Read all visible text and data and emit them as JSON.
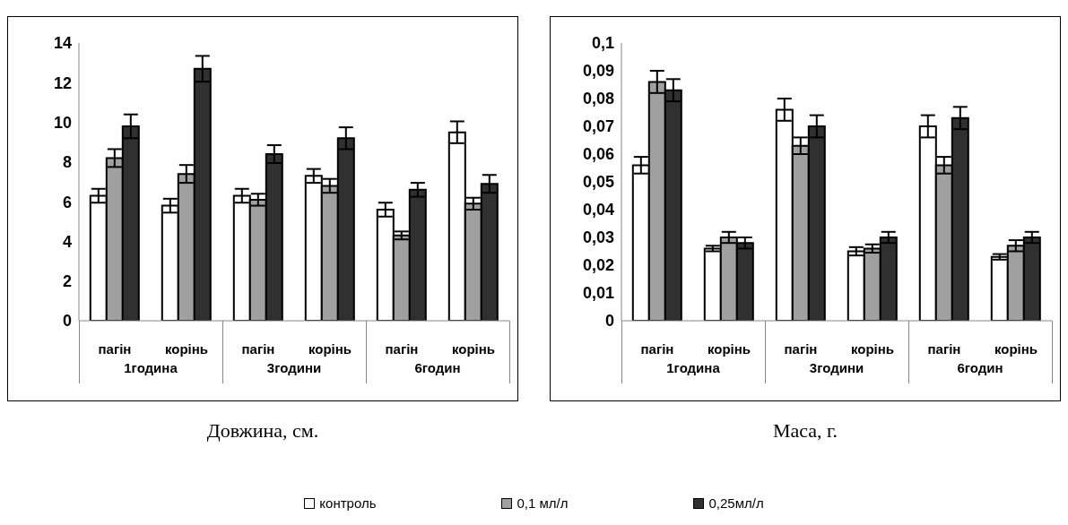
{
  "chart_data": [
    {
      "type": "bar",
      "xlabel": "Довжина, см.",
      "categories": [
        "пагін",
        "корінь",
        "пагін",
        "корінь",
        "пагін",
        "корінь"
      ],
      "annotations": [
        "1година",
        "3години",
        "6годин"
      ],
      "ylim": [
        0,
        14
      ],
      "yticks": [
        0,
        2,
        4,
        6,
        8,
        10,
        12,
        14
      ],
      "legend": "bottom",
      "series": [
        {
          "name": "контроль",
          "color": "#ffffff",
          "values": [
            6.3,
            5.8,
            6.3,
            7.3,
            5.6,
            9.5
          ],
          "errors": [
            0.35,
            0.35,
            0.35,
            0.35,
            0.35,
            0.55
          ]
        },
        {
          "name": "0,1 мл/л",
          "color": "#a0a0a0",
          "values": [
            8.2,
            7.4,
            6.1,
            6.8,
            4.3,
            5.9
          ],
          "errors": [
            0.45,
            0.45,
            0.3,
            0.35,
            0.2,
            0.3
          ]
        },
        {
          "name": "0,25мл/л",
          "color": "#303030",
          "values": [
            9.8,
            12.7,
            8.4,
            9.2,
            6.6,
            6.9
          ],
          "errors": [
            0.6,
            0.65,
            0.45,
            0.55,
            0.35,
            0.45
          ]
        }
      ]
    },
    {
      "type": "bar",
      "xlabel": "Маса, г.",
      "categories": [
        "пагін",
        "корінь",
        "пагін",
        "корінь",
        "пагін",
        "корінь"
      ],
      "annotations": [
        "1година",
        "3години",
        "6годин"
      ],
      "ylim": [
        0,
        0.1
      ],
      "yticks": [
        0,
        {
          "value": 0.01,
          "label": "0,01"
        },
        {
          "value": 0.02,
          "label": "0,02"
        },
        {
          "value": 0.03,
          "label": "0,03"
        },
        {
          "value": 0.04,
          "label": "0,04"
        },
        {
          "value": 0.05,
          "label": "0,05"
        },
        {
          "value": 0.06,
          "label": "0,06"
        },
        {
          "value": 0.07,
          "label": "0,07"
        },
        {
          "value": 0.08,
          "label": "0,08"
        },
        {
          "value": 0.09,
          "label": "0,09"
        },
        {
          "value": 0.1,
          "label": "0,1"
        }
      ],
      "series": [
        {
          "color": "#ffffff",
          "values": [
            0.056,
            0.026,
            0.076,
            0.025,
            0.07,
            0.023
          ],
          "errors": [
            0.003,
            0.001,
            0.004,
            0.0015,
            0.004,
            0.001
          ]
        },
        {
          "color": "#a0a0a0",
          "values": [
            0.086,
            0.03,
            0.063,
            0.026,
            0.056,
            0.027
          ],
          "errors": [
            0.004,
            0.002,
            0.003,
            0.0015,
            0.003,
            0.002
          ]
        },
        {
          "color": "#303030",
          "values": [
            0.083,
            0.028,
            0.07,
            0.03,
            0.073,
            0.03
          ],
          "errors": [
            0.004,
            0.002,
            0.004,
            0.002,
            0.004,
            0.002
          ]
        }
      ]
    }
  ]
}
